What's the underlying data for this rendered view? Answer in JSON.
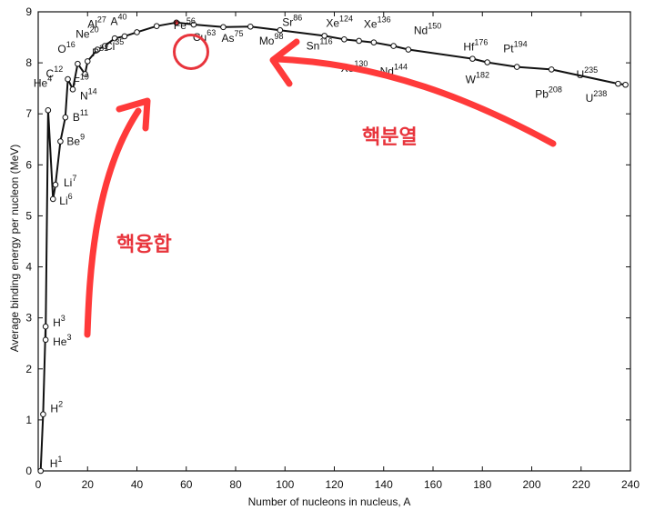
{
  "chart_data": {
    "type": "line",
    "title": "",
    "xlabel": "Number of nucleons in nucleus, A",
    "ylabel": "Average binding energy per nucleon (MeV)",
    "xlim": [
      0,
      240
    ],
    "ylim": [
      0,
      9
    ],
    "xticks": [
      "0",
      "20",
      "40",
      "60",
      "80",
      "100",
      "120",
      "140",
      "160",
      "180",
      "200",
      "220",
      "240"
    ],
    "yticks": [
      "0",
      "1",
      "2",
      "3",
      "4",
      "5",
      "6",
      "7",
      "8",
      "9"
    ],
    "grid": false,
    "series": [
      {
        "points": [
          {
            "x": 1,
            "y": 0.0
          },
          {
            "x": 2,
            "y": 1.11
          },
          {
            "x": 3,
            "y": 2.83
          },
          {
            "x": 3,
            "y": 2.57
          },
          {
            "x": 4,
            "y": 7.07
          },
          {
            "x": 6,
            "y": 5.33
          },
          {
            "x": 7,
            "y": 5.61
          },
          {
            "x": 9,
            "y": 6.46
          },
          {
            "x": 11,
            "y": 6.93
          },
          {
            "x": 12,
            "y": 7.68
          },
          {
            "x": 14,
            "y": 7.48
          },
          {
            "x": 16,
            "y": 7.98
          },
          {
            "x": 19,
            "y": 7.78
          },
          {
            "x": 20,
            "y": 8.03
          },
          {
            "x": 24,
            "y": 8.26
          },
          {
            "x": 27,
            "y": 8.33
          },
          {
            "x": 31,
            "y": 8.48
          },
          {
            "x": 35,
            "y": 8.52
          },
          {
            "x": 40,
            "y": 8.6
          },
          {
            "x": 48,
            "y": 8.72
          },
          {
            "x": 56,
            "y": 8.79
          },
          {
            "x": 63,
            "y": 8.75
          },
          {
            "x": 75,
            "y": 8.7
          },
          {
            "x": 86,
            "y": 8.71
          },
          {
            "x": 98,
            "y": 8.64
          },
          {
            "x": 116,
            "y": 8.53
          },
          {
            "x": 124,
            "y": 8.46
          },
          {
            "x": 130,
            "y": 8.43
          },
          {
            "x": 136,
            "y": 8.4
          },
          {
            "x": 144,
            "y": 8.33
          },
          {
            "x": 150,
            "y": 8.26
          },
          {
            "x": 176,
            "y": 8.08
          },
          {
            "x": 182,
            "y": 8.01
          },
          {
            "x": 194,
            "y": 7.92
          },
          {
            "x": 208,
            "y": 7.87
          },
          {
            "x": 235,
            "y": 7.59
          },
          {
            "x": 238,
            "y": 7.57
          }
        ]
      }
    ],
    "labels": [
      {
        "base": "H",
        "sup": "1",
        "x": 1,
        "y": 0.0
      },
      {
        "base": "H",
        "sup": "2",
        "x": 2,
        "y": 1.11
      },
      {
        "base": "H",
        "sup": "3",
        "x": 3,
        "y": 2.83
      },
      {
        "base": "He",
        "sup": "3",
        "x": 3,
        "y": 2.57
      },
      {
        "base": "He",
        "sup": "4",
        "x": 4,
        "y": 7.07
      },
      {
        "base": "Li",
        "sup": "6",
        "x": 6,
        "y": 5.33
      },
      {
        "base": "Li",
        "sup": "7",
        "x": 7,
        "y": 5.61
      },
      {
        "base": "Be",
        "sup": "9",
        "x": 9,
        "y": 6.46
      },
      {
        "base": "B",
        "sup": "11",
        "x": 11,
        "y": 6.93
      },
      {
        "base": "C",
        "sup": "12",
        "x": 12,
        "y": 7.68
      },
      {
        "base": "N",
        "sup": "14",
        "x": 14,
        "y": 7.48
      },
      {
        "base": "O",
        "sup": "16",
        "x": 16,
        "y": 7.98
      },
      {
        "base": "F",
        "sup": "19",
        "x": 19,
        "y": 7.78
      },
      {
        "base": "Ne",
        "sup": "20",
        "x": 20,
        "y": 8.03
      },
      {
        "base": "Al",
        "sup": "27",
        "x": 27,
        "y": 8.33
      },
      {
        "base": "P",
        "sup": "31",
        "x": 31,
        "y": 8.48
      },
      {
        "base": "Cl",
        "sup": "35",
        "x": 35,
        "y": 8.52
      },
      {
        "base": "A",
        "sup": "40",
        "x": 40,
        "y": 8.6
      },
      {
        "base": "Fe",
        "sup": "56",
        "x": 56,
        "y": 8.79
      },
      {
        "base": "Cu",
        "sup": "63",
        "x": 63,
        "y": 8.75
      },
      {
        "base": "As",
        "sup": "75",
        "x": 75,
        "y": 8.7
      },
      {
        "base": "Sr",
        "sup": "86",
        "x": 86,
        "y": 8.71
      },
      {
        "base": "Mo",
        "sup": "98",
        "x": 98,
        "y": 8.64
      },
      {
        "base": "Sn",
        "sup": "116",
        "x": 116,
        "y": 8.53
      },
      {
        "base": "Xe",
        "sup": "124",
        "x": 124,
        "y": 8.46
      },
      {
        "base": "Xe",
        "sup": "130",
        "x": 130,
        "y": 8.43
      },
      {
        "base": "Xe",
        "sup": "136",
        "x": 136,
        "y": 8.4
      },
      {
        "base": "Nd",
        "sup": "144",
        "x": 144,
        "y": 8.33
      },
      {
        "base": "Nd",
        "sup": "150",
        "x": 150,
        "y": 8.26
      },
      {
        "base": "Hf",
        "sup": "176",
        "x": 176,
        "y": 8.08
      },
      {
        "base": "W",
        "sup": "182",
        "x": 182,
        "y": 8.01
      },
      {
        "base": "Pt",
        "sup": "194",
        "x": 194,
        "y": 7.92
      },
      {
        "base": "Pb",
        "sup": "208",
        "x": 208,
        "y": 7.87
      },
      {
        "base": "U",
        "sup": "235",
        "x": 235,
        "y": 7.59
      },
      {
        "base": "U",
        "sup": "238",
        "x": 238,
        "y": 7.57
      }
    ],
    "annotations": {
      "fusion": "핵융합",
      "fission": "핵분열",
      "highlight": "Fe56",
      "color": "#e8343c"
    }
  }
}
